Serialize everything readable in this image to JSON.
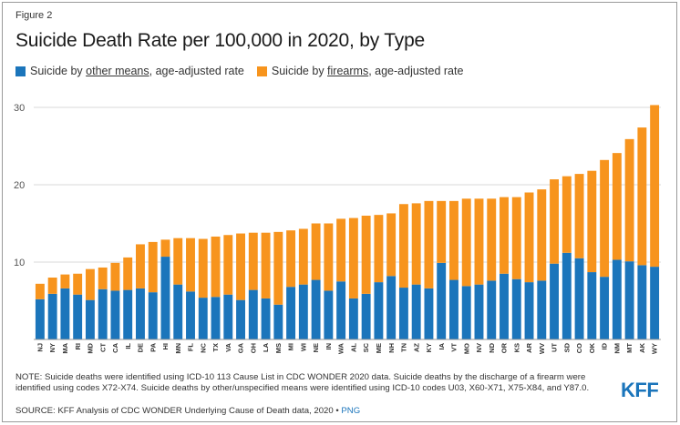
{
  "figure_label": "Figure 2",
  "legend": {
    "other": {
      "prefix": "Suicide by ",
      "linked": "other means",
      "suffix": ", age-adjusted rate",
      "color": "#1b75bb"
    },
    "firearm": {
      "prefix": "Suicide by ",
      "linked": "firearms",
      "suffix": ", age-adjusted rate",
      "color": "#f7941d"
    }
  },
  "note": "NOTE: Suicide deaths were identified using ICD-10 113 Cause List in CDC WONDER 2020 data. Suicide deaths by the discharge of a firearm were identified using codes X72-X74. Suicide deaths by other/unspecified means were identified using ICD-10 codes U03, X60-X71, X75-X84, and Y87.0.",
  "source": {
    "text": "SOURCE: KFF Analysis of CDC WONDER Underlying Cause of Death data, 2020 • ",
    "link": "PNG"
  },
  "logo": "KFF",
  "chart_data": {
    "type": "bar",
    "stacked": true,
    "title": "Suicide Death Rate per 100,000 in 2020, by Type",
    "ylim": [
      0,
      32
    ],
    "yticks": [
      10,
      20,
      30
    ],
    "grid": true,
    "legend_position": "top-left",
    "categories": [
      "NJ",
      "NY",
      "MA",
      "RI",
      "MD",
      "CT",
      "CA",
      "IL",
      "DE",
      "PA",
      "HI",
      "MN",
      "FL",
      "NC",
      "TX",
      "VA",
      "GA",
      "OH",
      "LA",
      "MS",
      "MI",
      "WI",
      "NE",
      "IN",
      "WA",
      "AL",
      "SC",
      "ME",
      "NH",
      "TN",
      "AZ",
      "KY",
      "IA",
      "VT",
      "MO",
      "NV",
      "ND",
      "OR",
      "KS",
      "AR",
      "WV",
      "UT",
      "SD",
      "CO",
      "OK",
      "ID",
      "NM",
      "MT",
      "AK",
      "WY"
    ],
    "series": [
      {
        "name": "Suicide by other means, age-adjusted rate",
        "color": "#1b75bb",
        "values": [
          5.2,
          5.9,
          6.6,
          5.8,
          5.1,
          6.5,
          6.3,
          6.4,
          6.6,
          6.1,
          10.7,
          7.1,
          6.2,
          5.4,
          5.5,
          5.8,
          5.1,
          6.4,
          5.3,
          4.5,
          6.8,
          7.1,
          7.7,
          6.3,
          7.5,
          5.3,
          5.9,
          7.4,
          8.2,
          6.7,
          7.1,
          6.6,
          9.9,
          7.7,
          6.9,
          7.1,
          7.6,
          8.5,
          7.8,
          7.4,
          7.6,
          9.8,
          11.2,
          10.5,
          8.7,
          8.1,
          10.3,
          10.1,
          9.6,
          9.4
        ]
      },
      {
        "name": "Suicide by firearms, age-adjusted rate",
        "color": "#f7941d",
        "values": [
          2.0,
          2.1,
          1.8,
          2.7,
          4.0,
          2.8,
          3.6,
          4.2,
          5.7,
          6.5,
          2.2,
          6.0,
          6.9,
          7.6,
          7.8,
          7.7,
          8.6,
          7.4,
          8.5,
          9.4,
          7.3,
          7.2,
          7.3,
          8.7,
          8.1,
          10.4,
          10.1,
          8.7,
          8.1,
          10.8,
          10.5,
          11.3,
          8.0,
          10.2,
          11.3,
          11.1,
          10.6,
          9.9,
          10.6,
          11.6,
          11.8,
          10.9,
          9.9,
          10.9,
          13.1,
          15.1,
          13.8,
          15.8,
          17.8,
          20.9
        ]
      }
    ]
  }
}
